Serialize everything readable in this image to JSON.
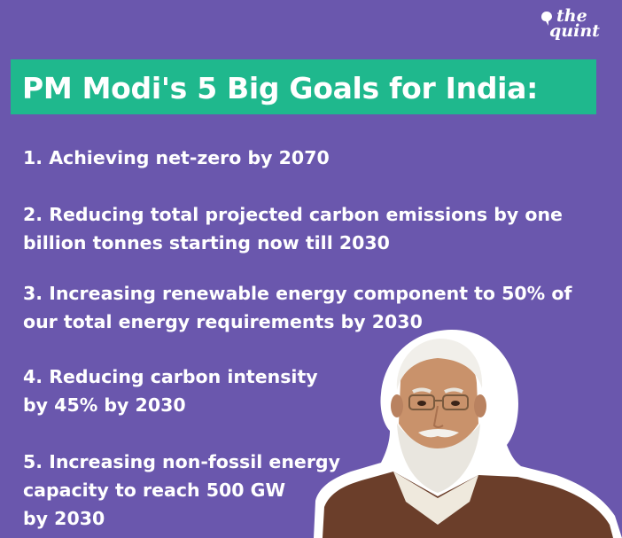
{
  "brand": {
    "logo_line1": "the",
    "logo_line2": "quint"
  },
  "headline": "PM Modi's 5 Big Goals for India:",
  "goals": [
    {
      "lines": [
        "1. Achieving net-zero by 2070"
      ]
    },
    {
      "lines": [
        "2. Reducing total projected carbon emissions by one",
        "billion tonnes starting now till 2030"
      ]
    },
    {
      "lines": [
        "3. Increasing renewable energy component to 50% of",
        "our total energy requirements by 2030"
      ]
    },
    {
      "lines": [
        "4. Reducing carbon intensity",
        "by 45% by 2030"
      ]
    },
    {
      "lines": [
        "5. Increasing non-fossil energy",
        "capacity to reach 500 GW",
        "by 2030"
      ]
    }
  ],
  "colors": {
    "background": "#6a57ad",
    "headline_box": "#1fb88d",
    "text": "#ffffff"
  },
  "image": {
    "subject": "portrait-photo-cutout"
  }
}
